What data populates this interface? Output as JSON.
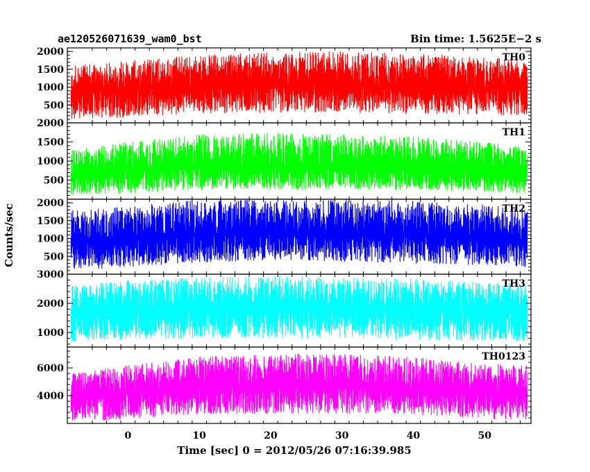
{
  "header": {
    "title": "ae120526071639_wam0_bst",
    "bin_time": "Bin time: 1.5625E−2 s"
  },
  "chart_data": {
    "type": "line",
    "title": "ae120526071639_wam0_bst",
    "xlabel": "Time [sec] 0 = 2012/05/26 07:16:39.985",
    "ylabel": "Counts/sec",
    "xlim": [
      -8.5,
      56.5
    ],
    "x_ticks": [
      0,
      10,
      20,
      30,
      40,
      50
    ],
    "x_tick_labels": [
      "0",
      "10",
      "20",
      "30",
      "40",
      "50"
    ],
    "data_x_range": [
      -8,
      56
    ],
    "grid": false,
    "panels": [
      {
        "name": "TH0",
        "color": "#ff0000",
        "ylim": [
          0,
          2100
        ],
        "y_ticks": [
          500,
          1000,
          1500,
          2000
        ],
        "y_tick_labels": [
          "500",
          "1000",
          "1500",
          "2000"
        ],
        "envelope": {
          "x": [
            -8,
            0,
            10,
            20,
            30,
            40,
            50,
            56
          ],
          "center": [
            850,
            950,
            1050,
            1080,
            1080,
            1050,
            1000,
            950
          ],
          "low": [
            100,
            150,
            250,
            280,
            280,
            250,
            220,
            200
          ],
          "high": [
            1600,
            1750,
            1900,
            2000,
            2000,
            1950,
            1850,
            1750
          ]
        }
      },
      {
        "name": "TH1",
        "color": "#00ff00",
        "ylim": [
          0,
          2000
        ],
        "y_ticks": [
          500,
          1000,
          1500,
          2000
        ],
        "y_tick_labels": [
          "500",
          "1000",
          "1500",
          "2000"
        ],
        "envelope": {
          "x": [
            -8,
            0,
            10,
            20,
            30,
            40,
            50,
            56
          ],
          "center": [
            600,
            750,
            900,
            850,
            850,
            800,
            750,
            650
          ],
          "low": [
            100,
            150,
            250,
            250,
            250,
            250,
            200,
            150
          ],
          "high": [
            1300,
            1500,
            1700,
            1750,
            1700,
            1650,
            1500,
            1350
          ]
        }
      },
      {
        "name": "TH2",
        "color": "#0000ff",
        "ylim": [
          0,
          2100
        ],
        "y_ticks": [
          500,
          1000,
          1500,
          2000
        ],
        "y_tick_labels": [
          "500",
          "1000",
          "1500",
          "2000"
        ],
        "envelope": {
          "x": [
            -8,
            0,
            10,
            20,
            30,
            40,
            50,
            56
          ],
          "center": [
            900,
            1000,
            1100,
            1150,
            1150,
            1100,
            1000,
            950
          ],
          "low": [
            100,
            200,
            300,
            400,
            350,
            300,
            250,
            200
          ],
          "high": [
            1800,
            1900,
            2100,
            2100,
            2100,
            2050,
            1950,
            1800
          ]
        }
      },
      {
        "name": "TH3",
        "color": "#00ffff",
        "ylim": [
          500,
          3000
        ],
        "y_ticks": [
          1000,
          2000,
          3000
        ],
        "y_tick_labels": [
          "1000",
          "2000",
          "3000"
        ],
        "envelope": {
          "x": [
            -8,
            0,
            10,
            20,
            30,
            40,
            50,
            56
          ],
          "center": [
            1700,
            1750,
            1850,
            1850,
            1850,
            1800,
            1750,
            1700
          ],
          "low": [
            700,
            750,
            800,
            800,
            800,
            750,
            700,
            700
          ],
          "high": [
            2600,
            2800,
            2900,
            2950,
            2900,
            2850,
            2750,
            2650
          ]
        }
      },
      {
        "name": "TH0123",
        "color": "#ff00ff",
        "ylim": [
          2000,
          7500
        ],
        "y_ticks": [
          4000,
          6000
        ],
        "y_tick_labels": [
          "4000",
          "6000"
        ],
        "envelope": {
          "x": [
            -8,
            0,
            10,
            20,
            30,
            40,
            50,
            56
          ],
          "center": [
            3900,
            4200,
            4600,
            4700,
            4700,
            4600,
            4300,
            4100
          ],
          "low": [
            2100,
            2300,
            2600,
            2700,
            2700,
            2600,
            2300,
            2200
          ],
          "high": [
            5600,
            6200,
            6800,
            7000,
            7000,
            6800,
            6300,
            6200
          ]
        }
      }
    ]
  }
}
